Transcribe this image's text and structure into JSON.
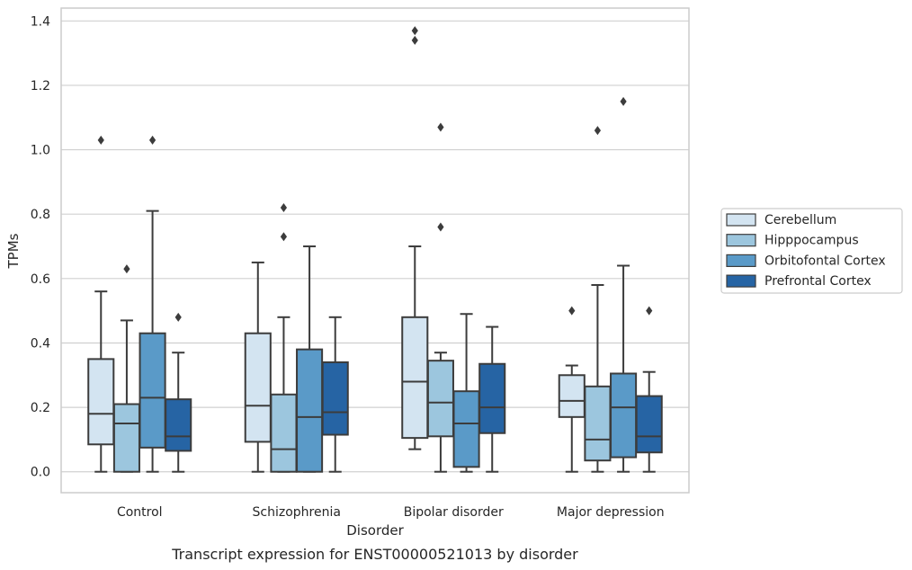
{
  "chart_data": {
    "type": "box",
    "title": "",
    "caption": "Transcript expression for ENST00000521013 by disorder",
    "xlabel": "Disorder",
    "ylabel": "TPMs",
    "ylim": [
      -0.065,
      1.44
    ],
    "yticks": [
      0.0,
      0.2,
      0.4,
      0.6,
      0.8,
      1.0,
      1.2,
      1.4
    ],
    "ytick_labels": [
      "0.0",
      "0.2",
      "0.4",
      "0.6",
      "0.8",
      "1.0",
      "1.2",
      "1.4"
    ],
    "grid": true,
    "legend_position": "right",
    "categories": [
      "Control",
      "Schizophrenia",
      "Bipolar disorder",
      "Major depression"
    ],
    "series": [
      {
        "name": "Cerebellum",
        "color": "#d3e4f1",
        "boxes": [
          {
            "whislo": 0.0,
            "q1": 0.085,
            "med": 0.18,
            "q3": 0.35,
            "whishi": 0.56,
            "fliers": [
              1.03
            ]
          },
          {
            "whislo": 0.0,
            "q1": 0.093,
            "med": 0.205,
            "q3": 0.43,
            "whishi": 0.65,
            "fliers": []
          },
          {
            "whislo": 0.07,
            "q1": 0.105,
            "med": 0.28,
            "q3": 0.48,
            "whishi": 0.7,
            "fliers": [
              1.37,
              1.34
            ]
          },
          {
            "whislo": 0.0,
            "q1": 0.17,
            "med": 0.22,
            "q3": 0.3,
            "whishi": 0.33,
            "fliers": [
              0.5
            ]
          }
        ]
      },
      {
        "name": "Hipppocampus",
        "color": "#9cc6de",
        "boxes": [
          {
            "whislo": 0.0,
            "q1": 0.0,
            "med": 0.15,
            "q3": 0.21,
            "whishi": 0.47,
            "fliers": [
              0.63
            ]
          },
          {
            "whislo": 0.0,
            "q1": 0.0,
            "med": 0.07,
            "q3": 0.24,
            "whishi": 0.48,
            "fliers": [
              0.82,
              0.73
            ]
          },
          {
            "whislo": 0.0,
            "q1": 0.11,
            "med": 0.215,
            "q3": 0.345,
            "whishi": 0.37,
            "fliers": [
              1.07,
              0.76
            ]
          },
          {
            "whislo": 0.0,
            "q1": 0.035,
            "med": 0.1,
            "q3": 0.265,
            "whishi": 0.58,
            "fliers": [
              1.06
            ]
          }
        ]
      },
      {
        "name": "Orbitofontal Cortex",
        "color": "#5a9ac8",
        "boxes": [
          {
            "whislo": 0.0,
            "q1": 0.075,
            "med": 0.23,
            "q3": 0.43,
            "whishi": 0.81,
            "fliers": [
              1.03
            ]
          },
          {
            "whislo": 0.0,
            "q1": 0.0,
            "med": 0.17,
            "q3": 0.38,
            "whishi": 0.7,
            "fliers": []
          },
          {
            "whislo": 0.0,
            "q1": 0.015,
            "med": 0.15,
            "q3": 0.25,
            "whishi": 0.49,
            "fliers": []
          },
          {
            "whislo": 0.0,
            "q1": 0.045,
            "med": 0.2,
            "q3": 0.305,
            "whishi": 0.64,
            "fliers": [
              1.15
            ]
          }
        ]
      },
      {
        "name": "Prefrontal Cortex",
        "color": "#2664a4",
        "boxes": [
          {
            "whislo": 0.0,
            "q1": 0.065,
            "med": 0.11,
            "q3": 0.225,
            "whishi": 0.37,
            "fliers": [
              0.48
            ]
          },
          {
            "whislo": 0.0,
            "q1": 0.115,
            "med": 0.185,
            "q3": 0.34,
            "whishi": 0.48,
            "fliers": []
          },
          {
            "whislo": 0.0,
            "q1": 0.12,
            "med": 0.2,
            "q3": 0.335,
            "whishi": 0.45,
            "fliers": []
          },
          {
            "whislo": 0.0,
            "q1": 0.06,
            "med": 0.11,
            "q3": 0.235,
            "whishi": 0.31,
            "fliers": [
              0.5
            ]
          }
        ]
      }
    ]
  }
}
